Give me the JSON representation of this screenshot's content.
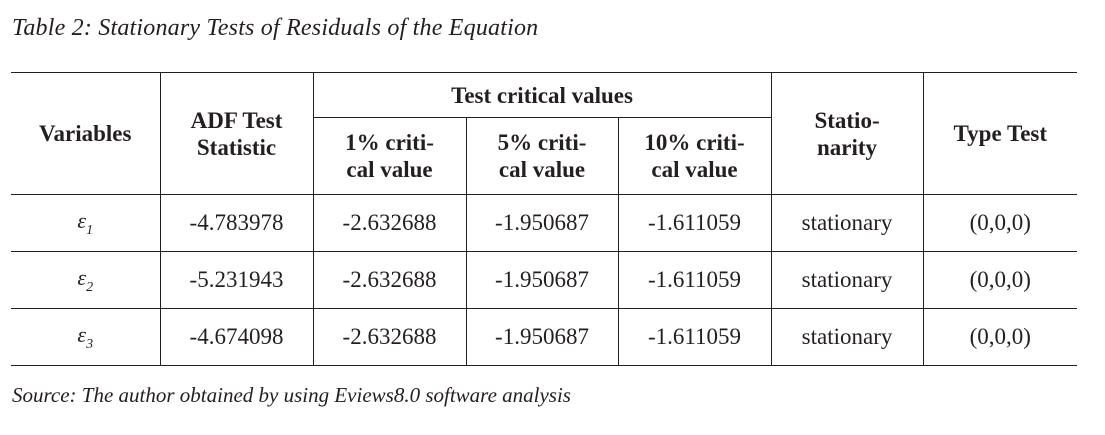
{
  "caption": "Table 2: Stationary Tests of Residuals of the Equation",
  "headers": {
    "variables": "Variables",
    "adf_line1": "ADF Test",
    "adf_line2": "Statistic",
    "group": "Test critical values",
    "cv1_line1": "1% criti-",
    "cv1_line2": "cal value",
    "cv5_line1": "5% criti-",
    "cv5_line2": "cal value",
    "cv10_line1": "10% criti-",
    "cv10_line2": "cal value",
    "stat_line1": "Statio-",
    "stat_line2": "narity",
    "type": "Type Test"
  },
  "rows": [
    {
      "var": "ε",
      "sub": "1",
      "adf": "-4.783978",
      "cv1": "-2.632688",
      "cv5": "-1.950687",
      "cv10": "-1.611059",
      "stationarity": "stationary",
      "type": "(0,0,0)"
    },
    {
      "var": "ε",
      "sub": "2",
      "adf": "-5.231943",
      "cv1": "-2.632688",
      "cv5": "-1.950687",
      "cv10": "-1.611059",
      "stationarity": "stationary",
      "type": "(0,0,0)"
    },
    {
      "var": "ε",
      "sub": "3",
      "adf": "-4.674098",
      "cv1": "-2.632688",
      "cv5": "-1.950687",
      "cv10": "-1.611059",
      "stationarity": "stationary",
      "type": "(0,0,0)"
    }
  ],
  "source": "Source: The author obtained by using Eviews8.0 software analysis"
}
